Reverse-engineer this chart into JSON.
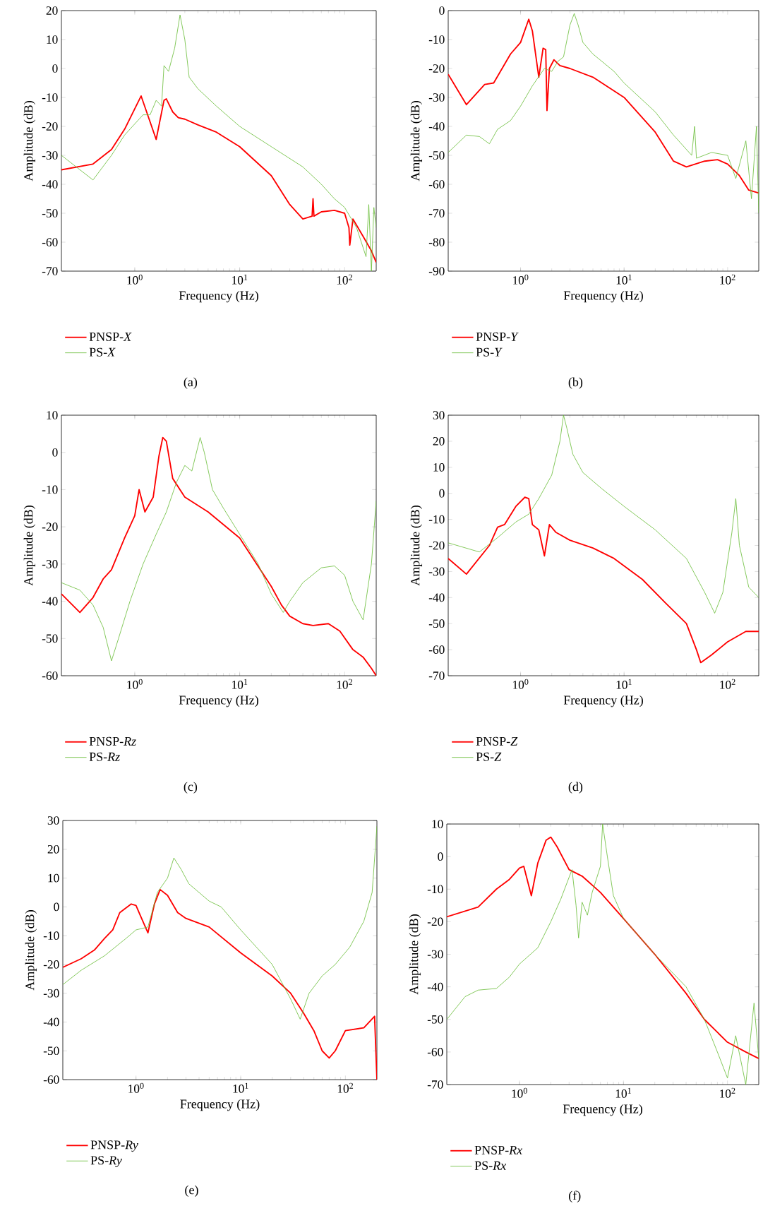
{
  "chart_data": [
    {
      "type": "line",
      "xlabel": "Frequency (Hz)",
      "ylabel": "Amplitude (dB)",
      "log": "x",
      "legend": "bottom",
      "line_style": "solid",
      "annotations": [
        "(a)"
      ],
      "xlim": [
        0.2,
        200
      ],
      "ylim": [
        -70,
        20
      ],
      "xticks": [
        {
          "value": 1,
          "label": "10$^{0}$"
        },
        {
          "value": 10,
          "label": "10$^{1}$"
        },
        {
          "value": 100,
          "label": "10$^{2}$"
        }
      ],
      "yticks": [
        -70,
        -60,
        -50,
        -40,
        -30,
        -20,
        -10,
        0,
        10,
        20
      ],
      "series": [
        {
          "name": "PNSP-*X*",
          "color": "#ff0000",
          "x": [
            0.2,
            0.4,
            0.6,
            0.8,
            1.15,
            1.6,
            1.9,
            2.0,
            2.3,
            2.6,
            3,
            4,
            6,
            10,
            20,
            30,
            40,
            49,
            50,
            51,
            60,
            80,
            100,
            110,
            112,
            120,
            150,
            180,
            200
          ],
          "values": [
            -35,
            -33,
            -28,
            -21,
            -9.5,
            -24.5,
            -11,
            -10.5,
            -15,
            -17,
            -17.5,
            -19.5,
            -22,
            -27,
            -37,
            -47,
            -52,
            -51,
            -45,
            -51,
            -49.5,
            -49,
            -50,
            -55,
            -61,
            -52,
            -58,
            -63,
            -67
          ]
        },
        {
          "name": "PS-*X*",
          "color": "#66bb33",
          "x": [
            0.2,
            0.4,
            0.6,
            0.8,
            1.2,
            1.4,
            1.6,
            1.8,
            1.9,
            2.1,
            2.4,
            2.7,
            3.0,
            3.3,
            4,
            6,
            10,
            20,
            40,
            60,
            80,
            100,
            130,
            160,
            170,
            180,
            190,
            200
          ],
          "values": [
            -30,
            -38.5,
            -30,
            -23,
            -16,
            -16,
            -11,
            -13,
            1,
            -1,
            7,
            18.5,
            10,
            -3,
            -7,
            -13,
            -20,
            -27,
            -34,
            -40,
            -45,
            -48,
            -55,
            -65,
            -47,
            -70,
            -48,
            -55
          ]
        }
      ]
    },
    {
      "type": "line",
      "xlabel": "Frequency (Hz)",
      "ylabel": "Amplitude (dB)",
      "log": "x",
      "legend": "bottom",
      "line_style": "solid",
      "annotations": [
        "(b)"
      ],
      "xlim": [
        0.2,
        200
      ],
      "ylim": [
        -90,
        0
      ],
      "xticks": [
        {
          "value": 1,
          "label": "10$^{0}$"
        },
        {
          "value": 10,
          "label": "10$^{1}$"
        },
        {
          "value": 100,
          "label": "10$^{2}$"
        }
      ],
      "yticks": [
        -90,
        -80,
        -70,
        -60,
        -50,
        -40,
        -30,
        -20,
        -10,
        0
      ],
      "series": [
        {
          "name": "PNSP-*Y*",
          "color": "#ff0000",
          "x": [
            0.2,
            0.3,
            0.45,
            0.55,
            0.8,
            1.0,
            1.2,
            1.3,
            1.5,
            1.65,
            1.75,
            1.8,
            1.9,
            2.1,
            2.4,
            3,
            5,
            10,
            20,
            30,
            40,
            60,
            80,
            100,
            130,
            160,
            200
          ],
          "values": [
            -22,
            -32.5,
            -25.5,
            -25,
            -15,
            -11,
            -3,
            -7,
            -23,
            -13,
            -13.5,
            -34.5,
            -20,
            -17,
            -19,
            -20,
            -23,
            -30,
            -42,
            -52,
            -54,
            -52,
            -51.5,
            -53,
            -57,
            -62,
            -63
          ]
        },
        {
          "name": "PS-*Y*",
          "color": "#66bb33",
          "x": [
            0.2,
            0.3,
            0.4,
            0.5,
            0.6,
            0.8,
            1.0,
            1.3,
            1.7,
            2.0,
            2.3,
            2.6,
            3.0,
            3.3,
            3.6,
            4,
            5,
            8,
            10,
            20,
            30,
            45,
            48,
            50,
            70,
            100,
            120,
            150,
            170,
            190,
            200
          ],
          "values": [
            -49,
            -43,
            -43.5,
            -46,
            -41,
            -38,
            -33,
            -26,
            -20,
            -21,
            -17.5,
            -16,
            -5,
            -1,
            -5,
            -11,
            -15,
            -21,
            -25,
            -35,
            -43,
            -50,
            -40,
            -51,
            -49,
            -50,
            -58,
            -45,
            -65,
            -40,
            -70
          ]
        }
      ]
    },
    {
      "type": "line",
      "xlabel": "Frequency (Hz)",
      "ylabel": "Amplitude (dB)",
      "log": "x",
      "legend": "bottom",
      "line_style": "solid",
      "annotations": [
        "(c)"
      ],
      "xlim": [
        0.2,
        200
      ],
      "ylim": [
        -60,
        10
      ],
      "xticks": [
        {
          "value": 1,
          "label": "10$^{0}$"
        },
        {
          "value": 10,
          "label": "10$^{1}$"
        },
        {
          "value": 100,
          "label": "10$^{2}$"
        }
      ],
      "yticks": [
        -60,
        -50,
        -40,
        -30,
        -20,
        -10,
        0,
        10
      ],
      "series": [
        {
          "name": "PNSP-*Rz*",
          "color": "#ff0000",
          "x": [
            0.2,
            0.3,
            0.4,
            0.5,
            0.6,
            0.8,
            1.0,
            1.1,
            1.25,
            1.5,
            1.7,
            1.85,
            2.0,
            2.3,
            3,
            5,
            10,
            20,
            25,
            30,
            40,
            50,
            70,
            90,
            120,
            150,
            180,
            200
          ],
          "values": [
            -38,
            -43,
            -39,
            -34,
            -31.5,
            -23,
            -17,
            -10,
            -16,
            -12,
            -1,
            4,
            3,
            -7,
            -12,
            -16,
            -23,
            -36,
            -41,
            -44,
            -46,
            -46.5,
            -46,
            -48,
            -53,
            -55,
            -58,
            -60
          ]
        },
        {
          "name": "PS-*Rz*",
          "color": "#66bb33",
          "x": [
            0.2,
            0.3,
            0.4,
            0.5,
            0.6,
            0.7,
            0.9,
            1.2,
            1.6,
            2.0,
            2.5,
            3.0,
            3.5,
            4.2,
            4.6,
            5.5,
            7,
            10,
            15,
            20,
            26,
            30,
            40,
            60,
            80,
            100,
            120,
            150,
            180,
            200
          ],
          "values": [
            -35,
            -37,
            -41,
            -47,
            -56,
            -50,
            -40,
            -30,
            -22,
            -16,
            -8,
            -3.5,
            -5,
            4,
            0,
            -10,
            -15,
            -22,
            -30,
            -38,
            -43,
            -40,
            -35,
            -31,
            -30.5,
            -33,
            -40,
            -45,
            -30,
            -13
          ]
        }
      ]
    },
    {
      "type": "line",
      "xlabel": "Frequency (Hz)",
      "ylabel": "Amplitude (dB)",
      "log": "x",
      "legend": "bottom",
      "line_style": "solid",
      "annotations": [
        "(d)"
      ],
      "xlim": [
        0.2,
        200
      ],
      "ylim": [
        -70,
        30
      ],
      "xticks": [
        {
          "value": 1,
          "label": "10$^{0}$"
        },
        {
          "value": 10,
          "label": "10$^{1}$"
        },
        {
          "value": 100,
          "label": "10$^{2}$"
        }
      ],
      "yticks": [
        -70,
        -60,
        -50,
        -40,
        -30,
        -20,
        -10,
        0,
        10,
        20,
        30
      ],
      "series": [
        {
          "name": "PNSP-*Z*",
          "color": "#ff0000",
          "x": [
            0.2,
            0.3,
            0.5,
            0.6,
            0.7,
            0.9,
            1.1,
            1.2,
            1.3,
            1.5,
            1.7,
            1.9,
            2.2,
            3,
            5,
            8,
            15,
            25,
            40,
            50,
            55,
            70,
            100,
            150,
            200
          ],
          "values": [
            -25,
            -31,
            -20,
            -13,
            -12,
            -5,
            -1.5,
            -2,
            -12,
            -14,
            -24,
            -12,
            -15,
            -18,
            -21,
            -25,
            -33,
            -42,
            -50,
            -60,
            -65,
            -62,
            -57,
            -53,
            -53
          ]
        },
        {
          "name": "PS-*Z*",
          "color": "#66bb33",
          "x": [
            0.2,
            0.4,
            0.6,
            0.9,
            1.2,
            1.5,
            2.0,
            2.4,
            2.6,
            2.8,
            3.2,
            4,
            6,
            10,
            20,
            40,
            60,
            75,
            90,
            110,
            120,
            130,
            160,
            200
          ],
          "values": [
            -19,
            -22.5,
            -17,
            -11,
            -8,
            -2,
            7,
            20,
            30,
            25,
            15,
            8,
            2,
            -5,
            -14,
            -25,
            -38,
            -46,
            -38,
            -15,
            -2,
            -20,
            -36,
            -40
          ]
        }
      ]
    },
    {
      "type": "line",
      "xlabel": "Frequency (Hz)",
      "ylabel": "Amplitude (dB)",
      "log": "x",
      "legend": "bottom",
      "line_style": "solid",
      "annotations": [
        "(e)"
      ],
      "xlim": [
        0.2,
        200
      ],
      "ylim": [
        -60,
        30
      ],
      "xticks": [
        {
          "value": 1,
          "label": "10$^{0}$"
        },
        {
          "value": 10,
          "label": "10$^{1}$"
        },
        {
          "value": 100,
          "label": "10$^{2}$"
        }
      ],
      "yticks": [
        -60,
        -50,
        -40,
        -30,
        -20,
        -10,
        0,
        10,
        20,
        30
      ],
      "series": [
        {
          "name": "PNSP-*Ry*",
          "color": "#ff0000",
          "x": [
            0.2,
            0.3,
            0.4,
            0.5,
            0.6,
            0.7,
            0.9,
            1.0,
            1.1,
            1.3,
            1.5,
            1.7,
            2.0,
            2.5,
            3,
            5,
            10,
            20,
            30,
            40,
            50,
            60,
            70,
            80,
            100,
            150,
            190,
            200
          ],
          "values": [
            -21,
            -18,
            -15,
            -11,
            -8,
            -2,
            1,
            0.5,
            -3,
            -9,
            1,
            6,
            4,
            -2,
            -4,
            -7,
            -16,
            -24,
            -30,
            -37,
            -43,
            -50,
            -52.5,
            -50,
            -43,
            -42,
            -38,
            -60
          ]
        },
        {
          "name": "PS-*Ry*",
          "color": "#66bb33",
          "x": [
            0.2,
            0.3,
            0.5,
            0.8,
            1.0,
            1.3,
            1.6,
            2.0,
            2.3,
            2.7,
            3.2,
            5,
            6.5,
            10,
            20,
            30,
            37,
            45,
            60,
            80,
            110,
            150,
            180,
            200
          ],
          "values": [
            -27,
            -22,
            -17,
            -11,
            -8,
            -7,
            5,
            10,
            17,
            13,
            8,
            2,
            0,
            -8,
            -20,
            -32,
            -39,
            -30,
            -24,
            -20,
            -14,
            -5,
            5,
            28
          ]
        }
      ]
    },
    {
      "type": "line",
      "xlabel": "Frequency (Hz)",
      "ylabel": "Amplitude (dB)",
      "log": "x",
      "legend": "bottom",
      "line_style": "solid",
      "annotations": [
        "(f)"
      ],
      "xlim": [
        0.2,
        200
      ],
      "ylim": [
        -70,
        10
      ],
      "xticks": [
        {
          "value": 1,
          "label": "10$^{0}$"
        },
        {
          "value": 10,
          "label": "10$^{1}$"
        },
        {
          "value": 100,
          "label": "10$^{2}$"
        }
      ],
      "yticks": [
        -70,
        -60,
        -50,
        -40,
        -30,
        -20,
        -10,
        0,
        10
      ],
      "series": [
        {
          "name": "PNSP-*Rx*",
          "color": "#ff0000",
          "x": [
            0.2,
            0.4,
            0.6,
            0.8,
            1.0,
            1.1,
            1.3,
            1.5,
            1.8,
            2.0,
            2.3,
            3,
            4,
            6,
            10,
            20,
            40,
            60,
            100,
            150,
            200
          ],
          "values": [
            -18.5,
            -15.5,
            -10,
            -7,
            -3.5,
            -3,
            -12,
            -2,
            5,
            6,
            3,
            -4,
            -6,
            -11,
            -19,
            -30,
            -42,
            -50,
            -57,
            -60,
            -62
          ]
        },
        {
          "name": "PS-*Rx*",
          "color": "#66bb33",
          "x": [
            0.2,
            0.3,
            0.4,
            0.6,
            0.8,
            1.0,
            1.5,
            2.0,
            2.5,
            3.2,
            3.5,
            3.7,
            4.0,
            4.5,
            5,
            6,
            6.3,
            7,
            8,
            10,
            20,
            40,
            60,
            80,
            100,
            120,
            150,
            180,
            200
          ],
          "values": [
            -50,
            -43,
            -41,
            -40.5,
            -37,
            -33,
            -28,
            -20,
            -13,
            -4,
            -15,
            -25,
            -14,
            -18,
            -11,
            -3,
            10,
            0,
            -12,
            -19,
            -30,
            -40,
            -50,
            -60,
            -68,
            -55,
            -70,
            -45,
            -62
          ]
        }
      ]
    }
  ]
}
